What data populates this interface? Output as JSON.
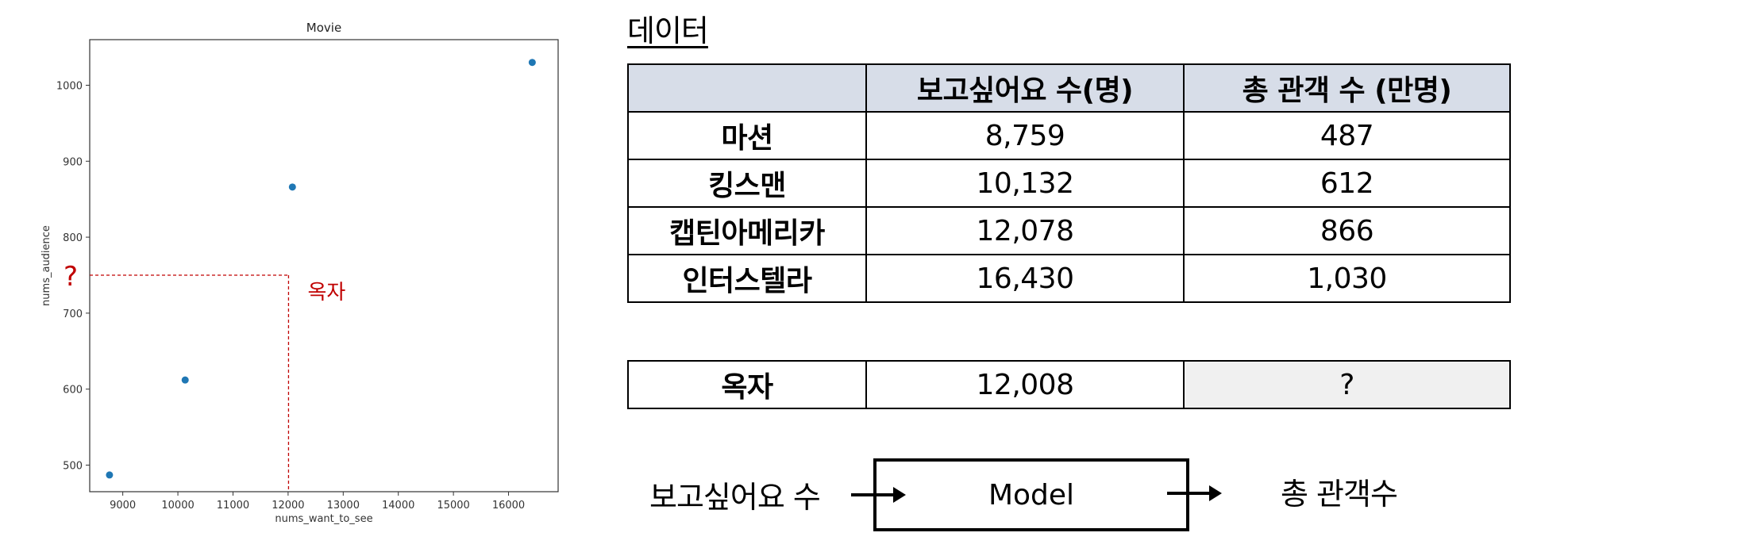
{
  "chart_data": {
    "type": "scatter",
    "title": "Movie",
    "xlabel": "nums_want_to_see",
    "ylabel": "nums_audience",
    "x": [
      8759,
      10132,
      12078,
      16430
    ],
    "y": [
      487,
      612,
      866,
      1030
    ],
    "xlim": [
      8400,
      16900
    ],
    "ylim": [
      465,
      1060
    ],
    "xticks": [
      9000,
      10000,
      11000,
      12000,
      13000,
      14000,
      15000,
      16000
    ],
    "yticks": [
      500,
      600,
      700,
      800,
      900,
      1000
    ],
    "point_color": "#1f77b4",
    "grid": false,
    "query": {
      "x": 12008,
      "y": 750,
      "y_label": "?",
      "label": "옥자",
      "color": "#c00000"
    }
  },
  "section_title": "데이터",
  "table": {
    "headers": [
      "",
      "보고싶어요 수(명)",
      "총 관객 수 (만명)"
    ],
    "rows": [
      {
        "name": "마션",
        "want": "8,759",
        "audience": "487"
      },
      {
        "name": "킹스맨",
        "want": "10,132",
        "audience": "612"
      },
      {
        "name": "캡틴아메리카",
        "want": "12,078",
        "audience": "866"
      },
      {
        "name": "인터스텔라",
        "want": "16,430",
        "audience": "1,030"
      }
    ],
    "header_bg": "#d7dde8"
  },
  "query_row": {
    "name": "옥자",
    "want": "12,008",
    "audience": "?"
  },
  "flow": {
    "input_label": "보고싶어요 수",
    "model_label": "Model",
    "output_label": "총 관객수"
  }
}
